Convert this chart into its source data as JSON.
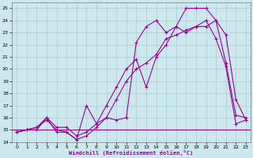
{
  "xlabel": "Windchill (Refroidissement éolien,°C)",
  "bg_color": "#cce8ee",
  "grid_color": "#aacccc",
  "line_color": "#990099",
  "xlim": [
    -0.5,
    23.5
  ],
  "ylim": [
    14,
    25.5
  ],
  "yticks": [
    14,
    15,
    16,
    17,
    18,
    19,
    20,
    21,
    22,
    23,
    24,
    25
  ],
  "xticks": [
    0,
    1,
    2,
    3,
    4,
    5,
    6,
    7,
    8,
    9,
    10,
    11,
    12,
    13,
    14,
    15,
    16,
    17,
    18,
    19,
    20,
    21,
    22,
    23
  ],
  "hline_y": 15.0,
  "marker_size": 2.0,
  "line_width": 0.8,
  "series1_x": [
    0,
    1,
    2,
    3,
    4,
    5,
    6,
    7,
    8,
    9,
    10,
    11,
    12,
    13,
    14,
    15,
    16,
    17,
    18,
    19,
    20,
    21,
    22,
    23
  ],
  "series1_y": [
    14.8,
    15.0,
    15.0,
    16.0,
    14.8,
    14.8,
    14.2,
    17.0,
    15.5,
    16.0,
    15.8,
    16.0,
    22.2,
    23.5,
    24.0,
    23.0,
    23.5,
    25.0,
    25.0,
    25.0,
    24.0,
    22.8,
    17.5,
    15.8
  ],
  "series2_x": [
    0,
    2,
    3,
    4,
    5,
    6,
    7,
    8,
    9,
    10,
    11,
    12,
    13,
    14,
    15,
    16,
    17,
    18,
    19,
    20,
    21,
    22,
    23
  ],
  "series2_y": [
    14.8,
    15.2,
    16.0,
    15.2,
    15.2,
    14.5,
    14.8,
    15.5,
    17.0,
    18.5,
    20.0,
    20.8,
    18.5,
    21.0,
    22.0,
    23.5,
    23.0,
    23.5,
    23.5,
    24.0,
    20.5,
    16.2,
    16.0
  ],
  "series3_x": [
    0,
    1,
    2,
    3,
    4,
    5,
    6,
    7,
    8,
    9,
    10,
    11,
    12,
    13,
    14,
    15,
    16,
    17,
    18,
    19,
    20,
    21,
    22,
    23
  ],
  "series3_y": [
    14.8,
    15.0,
    15.2,
    15.8,
    15.0,
    14.8,
    14.2,
    14.5,
    15.2,
    16.0,
    17.5,
    19.0,
    20.0,
    20.5,
    21.2,
    22.5,
    22.8,
    23.2,
    23.5,
    24.0,
    22.5,
    20.2,
    15.5,
    15.8
  ]
}
